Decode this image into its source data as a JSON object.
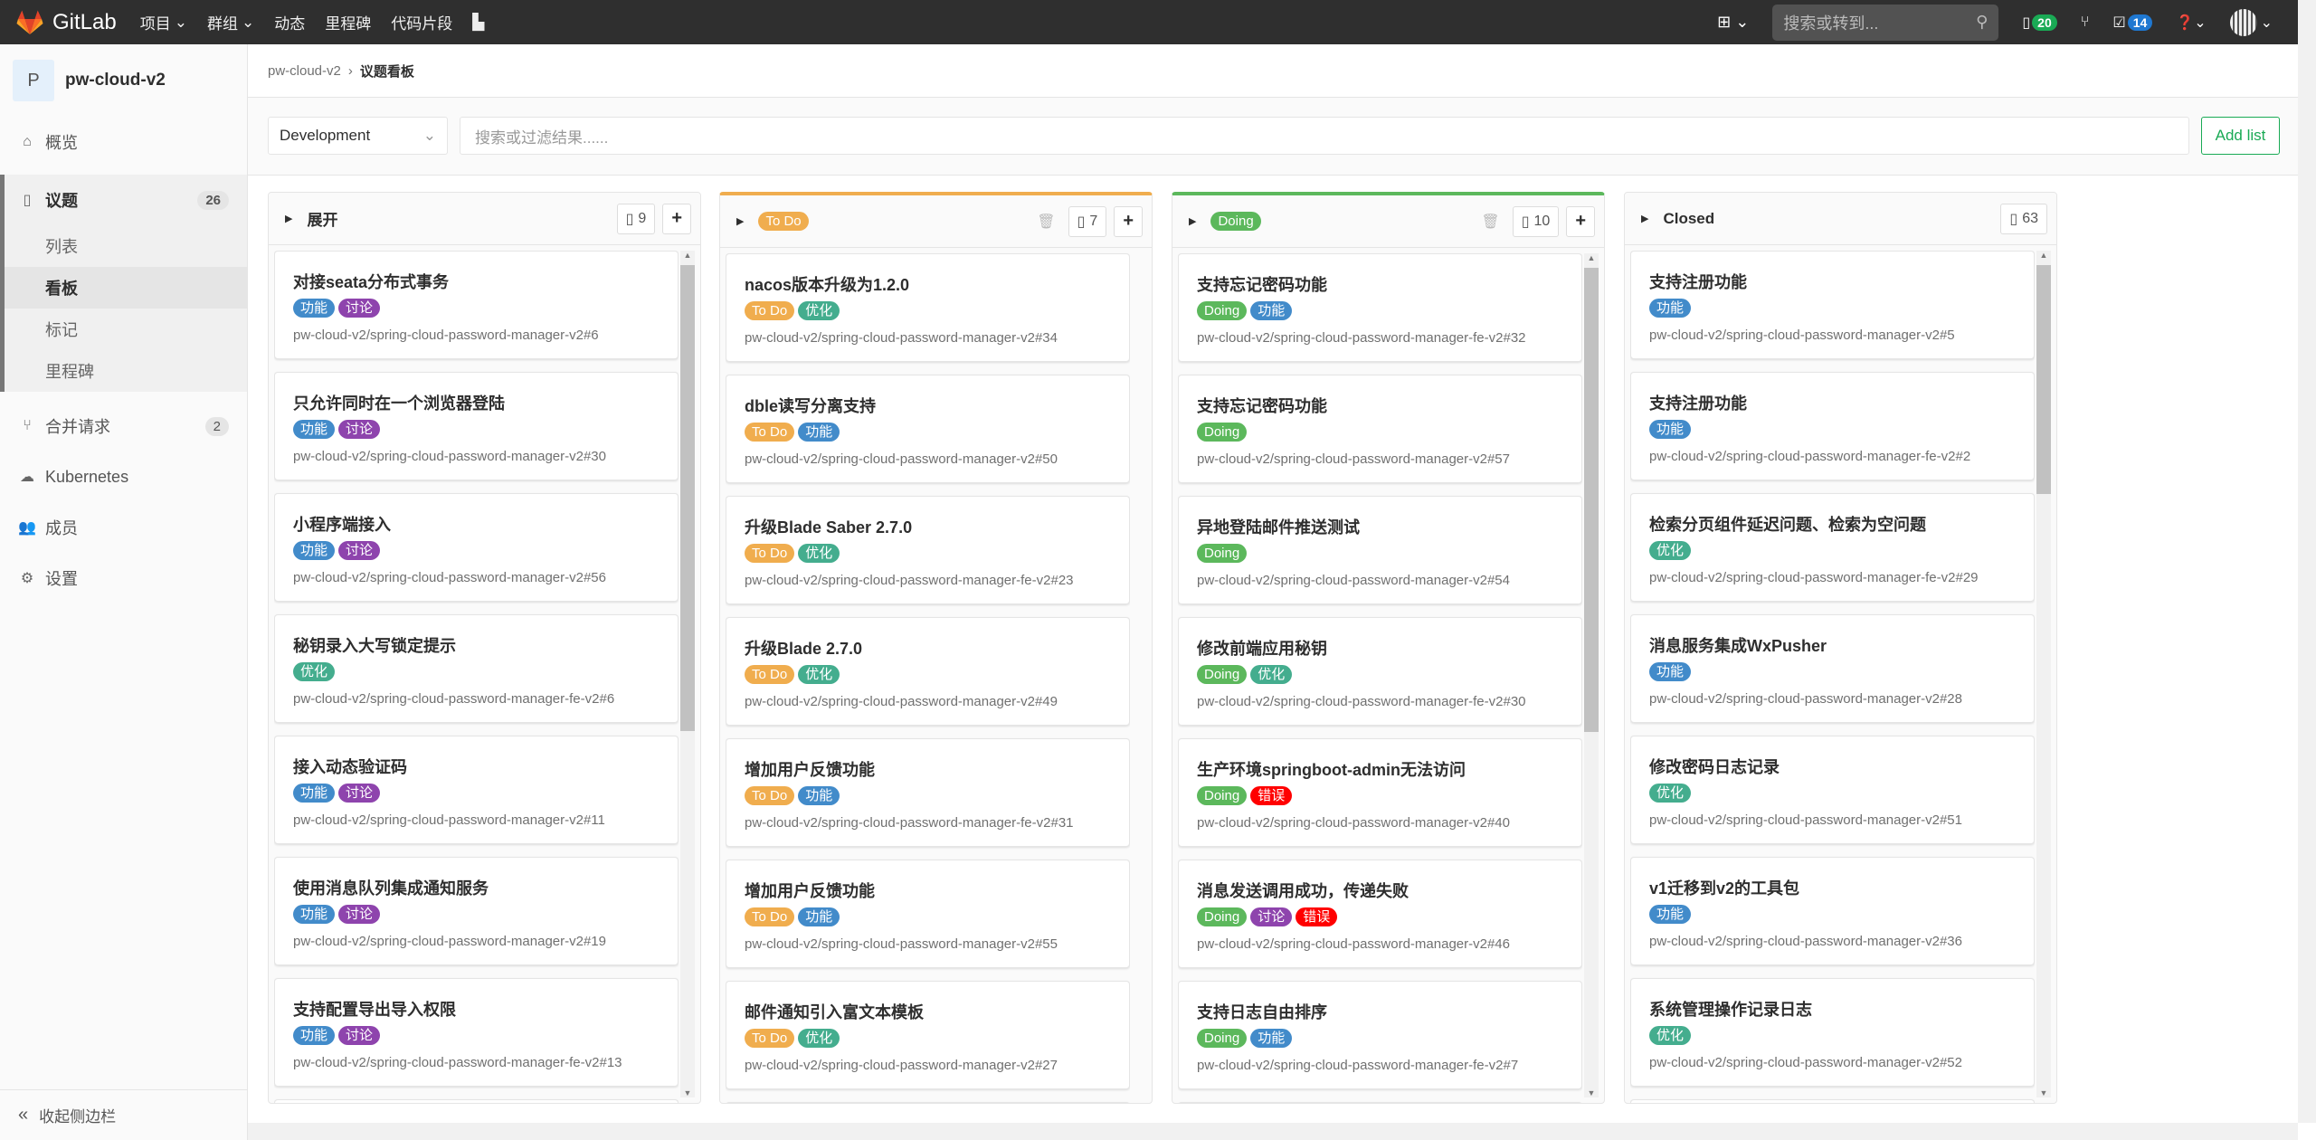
{
  "nav": {
    "brand": "GitLab",
    "items": [
      "项目",
      "群组",
      "动态",
      "里程碑",
      "代码片段"
    ],
    "search_placeholder": "搜索或转到...",
    "issues_count": "20",
    "todos_count": "14"
  },
  "colors": {
    "nav_bg": "#2f2f2f",
    "issues_badge": "#1aaa55",
    "todos_badge": "#1f78d1",
    "add_list": "#1aaa55"
  },
  "sidebar": {
    "avatar_letter": "P",
    "project": "pw-cloud-v2",
    "overview": "概览",
    "issues": "议题",
    "issues_count": "26",
    "sub": [
      "列表",
      "看板",
      "标记",
      "里程碑"
    ],
    "merge_requests": "合并请求",
    "mr_count": "2",
    "kubernetes": "Kubernetes",
    "members": "成员",
    "settings": "设置",
    "collapse": "收起侧边栏"
  },
  "breadcrumb": {
    "project": "pw-cloud-v2",
    "current": "议题看板"
  },
  "filter": {
    "board": "Development",
    "search_placeholder": "搜索或过滤结果......",
    "add_list": "Add list"
  },
  "label_colors": {
    "功能": "#428bca",
    "讨论": "#8e44ad",
    "优化": "#44ad8e",
    "To Do": "#f0ad4e",
    "Doing": "#5cb85c",
    "错误": "#ff0000"
  },
  "columns": [
    {
      "title": "展开",
      "is_label": false,
      "count": "9",
      "deletable": false,
      "addable": true,
      "accent": "",
      "cards": [
        {
          "title": "对接seata分布式事务",
          "labels": [
            "功能",
            "讨论"
          ],
          "ref": "pw-cloud-v2/spring-cloud-password-manager-v2#6"
        },
        {
          "title": "只允许同时在一个浏览器登陆",
          "labels": [
            "功能",
            "讨论"
          ],
          "ref": "pw-cloud-v2/spring-cloud-password-manager-v2#30"
        },
        {
          "title": "小程序端接入",
          "labels": [
            "功能",
            "讨论"
          ],
          "ref": "pw-cloud-v2/spring-cloud-password-manager-v2#56"
        },
        {
          "title": "秘钥录入大写锁定提示",
          "labels": [
            "优化"
          ],
          "ref": "pw-cloud-v2/spring-cloud-password-manager-fe-v2#6"
        },
        {
          "title": "接入动态验证码",
          "labels": [
            "功能",
            "讨论"
          ],
          "ref": "pw-cloud-v2/spring-cloud-password-manager-v2#11"
        },
        {
          "title": "使用消息队列集成通知服务",
          "labels": [
            "功能",
            "讨论"
          ],
          "ref": "pw-cloud-v2/spring-cloud-password-manager-v2#19"
        },
        {
          "title": "支持配置导出导入权限",
          "labels": [
            "功能",
            "讨论"
          ],
          "ref": "pw-cloud-v2/spring-cloud-password-manager-fe-v2#13"
        }
      ]
    },
    {
      "title": "To Do",
      "is_label": true,
      "count": "7",
      "deletable": true,
      "addable": true,
      "accent": "#f0ad4e",
      "cards": [
        {
          "title": "nacos版本升级为1.2.0",
          "labels": [
            "To Do",
            "优化"
          ],
          "ref": "pw-cloud-v2/spring-cloud-password-manager-v2#34"
        },
        {
          "title": "dble读写分离支持",
          "labels": [
            "To Do",
            "功能"
          ],
          "ref": "pw-cloud-v2/spring-cloud-password-manager-v2#50"
        },
        {
          "title": "升级Blade Saber 2.7.0",
          "labels": [
            "To Do",
            "优化"
          ],
          "ref": "pw-cloud-v2/spring-cloud-password-manager-fe-v2#23"
        },
        {
          "title": "升级Blade 2.7.0",
          "labels": [
            "To Do",
            "优化"
          ],
          "ref": "pw-cloud-v2/spring-cloud-password-manager-v2#49"
        },
        {
          "title": "增加用户反馈功能",
          "labels": [
            "To Do",
            "功能"
          ],
          "ref": "pw-cloud-v2/spring-cloud-password-manager-fe-v2#31"
        },
        {
          "title": "增加用户反馈功能",
          "labels": [
            "To Do",
            "功能"
          ],
          "ref": "pw-cloud-v2/spring-cloud-password-manager-v2#55"
        },
        {
          "title": "邮件通知引入富文本模板",
          "labels": [
            "To Do",
            "优化"
          ],
          "ref": "pw-cloud-v2/spring-cloud-password-manager-v2#27"
        }
      ]
    },
    {
      "title": "Doing",
      "is_label": true,
      "count": "10",
      "deletable": true,
      "addable": true,
      "accent": "#5cb85c",
      "cards": [
        {
          "title": "支持忘记密码功能",
          "labels": [
            "Doing",
            "功能"
          ],
          "ref": "pw-cloud-v2/spring-cloud-password-manager-fe-v2#32"
        },
        {
          "title": "支持忘记密码功能",
          "labels": [
            "Doing"
          ],
          "ref": "pw-cloud-v2/spring-cloud-password-manager-v2#57"
        },
        {
          "title": "异地登陆邮件推送测试",
          "labels": [
            "Doing"
          ],
          "ref": "pw-cloud-v2/spring-cloud-password-manager-v2#54"
        },
        {
          "title": "修改前端应用秘钥",
          "labels": [
            "Doing",
            "优化"
          ],
          "ref": "pw-cloud-v2/spring-cloud-password-manager-fe-v2#30"
        },
        {
          "title": "生产环境springboot-admin无法访问",
          "labels": [
            "Doing",
            "错误"
          ],
          "ref": "pw-cloud-v2/spring-cloud-password-manager-v2#40"
        },
        {
          "title": "消息发送调用成功，传递失败",
          "labels": [
            "Doing",
            "讨论",
            "错误"
          ],
          "ref": "pw-cloud-v2/spring-cloud-password-manager-v2#46"
        },
        {
          "title": "支持日志自由排序",
          "labels": [
            "Doing",
            "功能"
          ],
          "ref": "pw-cloud-v2/spring-cloud-password-manager-fe-v2#7"
        }
      ]
    },
    {
      "title": "Closed",
      "is_label": false,
      "count": "63",
      "deletable": false,
      "addable": false,
      "accent": "",
      "cards": [
        {
          "title": "支持注册功能",
          "labels": [
            "功能"
          ],
          "ref": "pw-cloud-v2/spring-cloud-password-manager-v2#5"
        },
        {
          "title": "支持注册功能",
          "labels": [
            "功能"
          ],
          "ref": "pw-cloud-v2/spring-cloud-password-manager-fe-v2#2"
        },
        {
          "title": "检索分页组件延迟问题、检索为空问题",
          "labels": [
            "优化"
          ],
          "ref": "pw-cloud-v2/spring-cloud-password-manager-fe-v2#29"
        },
        {
          "title": "消息服务集成WxPusher",
          "labels": [
            "功能"
          ],
          "ref": "pw-cloud-v2/spring-cloud-password-manager-v2#28"
        },
        {
          "title": "修改密码日志记录",
          "labels": [
            "优化"
          ],
          "ref": "pw-cloud-v2/spring-cloud-password-manager-v2#51"
        },
        {
          "title": "v1迁移到v2的工具包",
          "labels": [
            "功能"
          ],
          "ref": "pw-cloud-v2/spring-cloud-password-manager-v2#36"
        },
        {
          "title": "系统管理操作记录日志",
          "labels": [
            "优化"
          ],
          "ref": "pw-cloud-v2/spring-cloud-password-manager-v2#52"
        }
      ]
    }
  ]
}
